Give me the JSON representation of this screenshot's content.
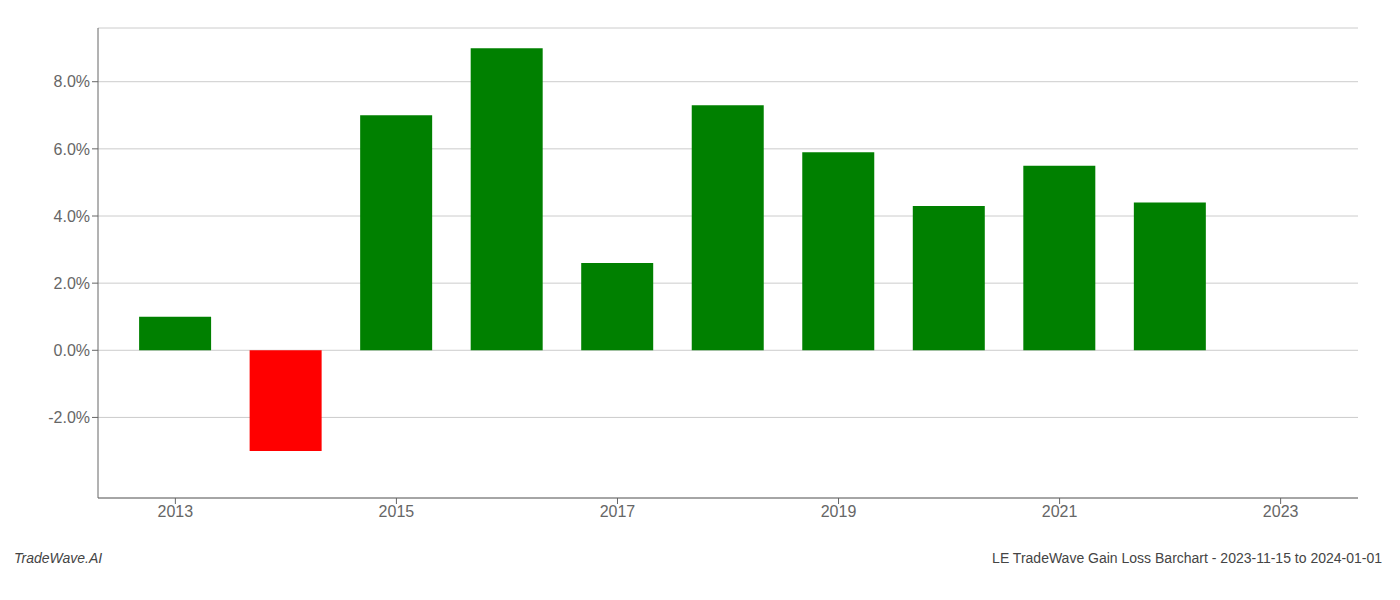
{
  "chart_data": {
    "type": "bar",
    "x": [
      2013,
      2014,
      2015,
      2016,
      2017,
      2018,
      2019,
      2020,
      2021,
      2022
    ],
    "values": [
      0.01,
      -0.03,
      0.07,
      0.09,
      0.026,
      0.073,
      0.059,
      0.043,
      0.055,
      0.044
    ],
    "colors": [
      "#008000",
      "#ff0000",
      "#008000",
      "#008000",
      "#008000",
      "#008000",
      "#008000",
      "#008000",
      "#008000",
      "#008000"
    ],
    "xlim": [
      2012.3,
      2023.7
    ],
    "xticks": [
      2013,
      2015,
      2017,
      2019,
      2021,
      2023
    ],
    "ylim": [
      -0.044,
      0.096
    ],
    "yticks": [
      {
        "value": -0.02,
        "label": "-2.0%"
      },
      {
        "value": 0.0,
        "label": "0.0%"
      },
      {
        "value": 0.02,
        "label": "2.0%"
      },
      {
        "value": 0.04,
        "label": "4.0%"
      },
      {
        "value": 0.06,
        "label": "6.0%"
      },
      {
        "value": 0.08,
        "label": "8.0%"
      }
    ],
    "grid": true,
    "annotations": [
      "TradeWave.AI",
      "LE TradeWave Gain Loss Barchart - 2023-11-15 to 2024-01-01"
    ]
  }
}
